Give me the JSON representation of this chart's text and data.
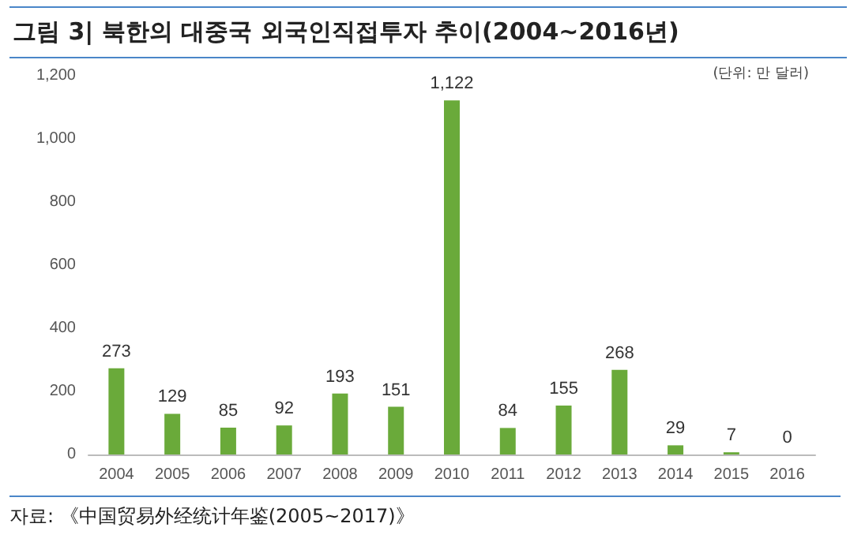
{
  "chart_data": {
    "type": "bar",
    "title": "그림 3| 북한의 대중국 외국인직접투자 추이(2004~2016년)",
    "categories": [
      "2004",
      "2005",
      "2006",
      "2007",
      "2008",
      "2009",
      "2010",
      "2011",
      "2012",
      "2013",
      "2014",
      "2015",
      "2016"
    ],
    "values": [
      273,
      129,
      85,
      92,
      193,
      151,
      1122,
      84,
      155,
      268,
      29,
      7,
      0
    ],
    "value_labels": [
      "273",
      "129",
      "85",
      "92",
      "193",
      "151",
      "1,122",
      "84",
      "155",
      "268",
      "29",
      "7",
      "0"
    ],
    "color": "#6aaa3a",
    "ylim": [
      0,
      1200
    ],
    "yticks": [
      0,
      200,
      400,
      600,
      800,
      {
        "value": 1000,
        "label": "1,000"
      },
      {
        "value": 1200,
        "label": "1,200"
      }
    ],
    "grid": false,
    "annotations": [
      "(단위: 만 달러)",
      "자료: 《中国贸易外经统计年鉴(2005~2017)》"
    ]
  }
}
